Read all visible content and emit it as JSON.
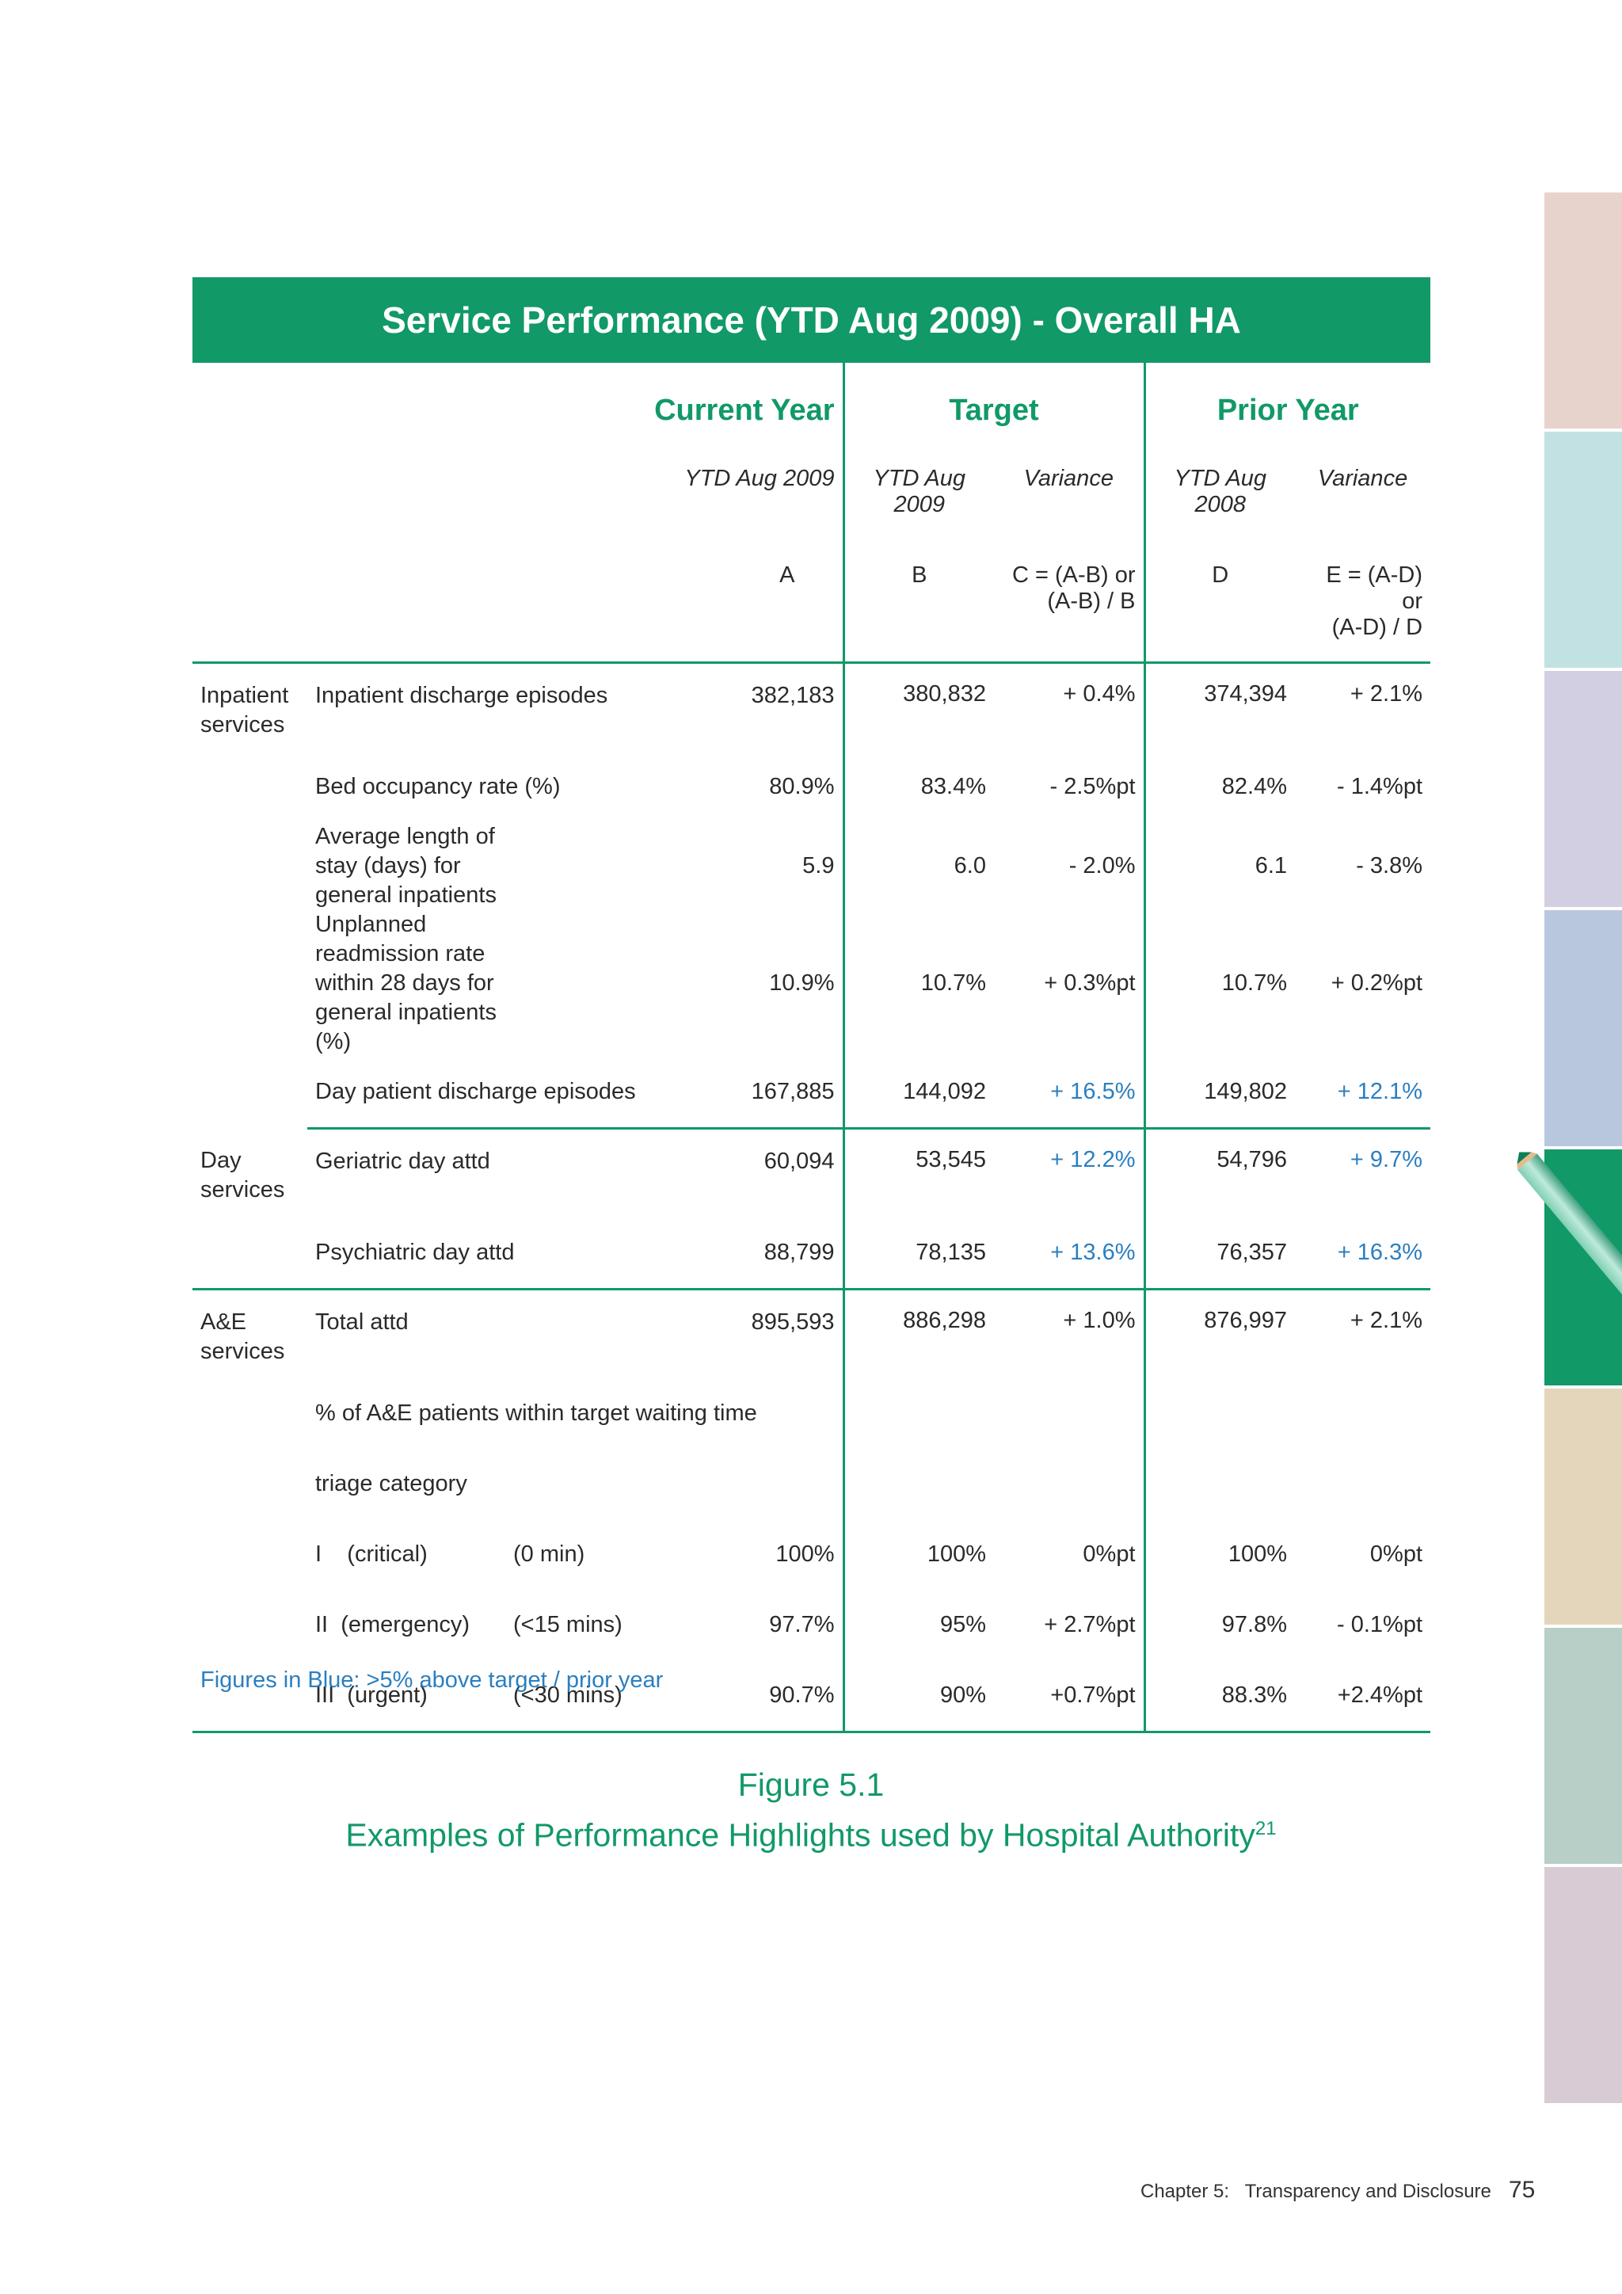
{
  "table": {
    "title": "Service Performance (YTD Aug 2009) - Overall HA",
    "groups": {
      "current": "Current Year",
      "target": "Target",
      "prior": "Prior Year"
    },
    "subheads": {
      "a": "YTD Aug 2009",
      "b": "YTD Aug 2009",
      "c": "Variance",
      "d": "YTD Aug 2008",
      "e": "Variance"
    },
    "letters": {
      "a": "A",
      "b": "B",
      "c1": "C = (A-B) or",
      "c2": "(A-B) / B",
      "d": "D",
      "e1": "E = (A-D) or",
      "e2": "(A-D) / D"
    },
    "sections": {
      "inpatient": "Inpatient services",
      "day": "Day services",
      "ae": "A&E services"
    },
    "rows": {
      "r1": {
        "label": "Inpatient discharge episodes",
        "a": "382,183",
        "b": "380,832",
        "c": "+ 0.4%",
        "d": "374,394",
        "e": "+ 2.1%"
      },
      "r2": {
        "label": "Bed occupancy rate (%)",
        "a": "80.9%",
        "b": "83.4%",
        "c": "- 2.5%pt",
        "d": "82.4%",
        "e": "- 1.4%pt"
      },
      "r3": {
        "label": "Average length of stay (days) for general inpatients",
        "a": "5.9",
        "b": "6.0",
        "c": "- 2.0%",
        "d": "6.1",
        "e": "- 3.8%"
      },
      "r4": {
        "label": "Unplanned readmission rate within 28 days for general inpatients (%)",
        "a": "10.9%",
        "b": "10.7%",
        "c": "+ 0.3%pt",
        "d": "10.7%",
        "e": "+ 0.2%pt"
      },
      "r5": {
        "label": "Day patient discharge episodes",
        "a": "167,885",
        "b": "144,092",
        "c": "+ 16.5%",
        "d": "149,802",
        "e": "+ 12.1%"
      },
      "r6": {
        "label": "Geriatric day attd",
        "a": "60,094",
        "b": "53,545",
        "c": "+ 12.2%",
        "d": "54,796",
        "e": "+ 9.7%"
      },
      "r7": {
        "label": "Psychiatric day attd",
        "a": "88,799",
        "b": "78,135",
        "c": "+ 13.6%",
        "d": "76,357",
        "e": "+ 16.3%"
      },
      "r8": {
        "label": "Total attd",
        "a": "895,593",
        "b": "886,298",
        "c": "+ 1.0%",
        "d": "876,997",
        "e": "+ 2.1%"
      },
      "r9": {
        "label": "% of A&E patients within target waiting time"
      },
      "r10": {
        "label": "triage category"
      },
      "r11": {
        "label": "I    (critical)",
        "time": "(0 min)",
        "a": "100%",
        "b": "100%",
        "c": "0%pt",
        "d": "100%",
        "e": "0%pt"
      },
      "r12": {
        "label": "II  (emergency)",
        "time": "(<15 mins)",
        "a": "97.7%",
        "b": "95%",
        "c": "+ 2.7%pt",
        "d": "97.8%",
        "e": "- 0.1%pt"
      },
      "r13": {
        "label": "III  (urgent)",
        "time": "(<30 mins)",
        "a": "90.7%",
        "b": "90%",
        "c": "+0.7%pt",
        "d": "88.3%",
        "e": "+2.4%pt"
      }
    }
  },
  "note": "Figures in Blue: >5% above target / prior year",
  "caption": {
    "line1": "Figure 5.1",
    "line2": "Examples of Performance Highlights used by Hospital Authority",
    "sup": "21"
  },
  "footer": {
    "chapter": "Chapter 5:   Transparency and Disclosure",
    "page": "75"
  },
  "colors": {
    "green": "#119967",
    "blue": "#2b7fc0",
    "tabs": [
      "#e8d3cc",
      "#c2e1e2",
      "#d3cfe2",
      "#b9c7de",
      "#119967",
      "#e4d6bb",
      "#b7cfc6",
      "#d9cbd3"
    ]
  }
}
